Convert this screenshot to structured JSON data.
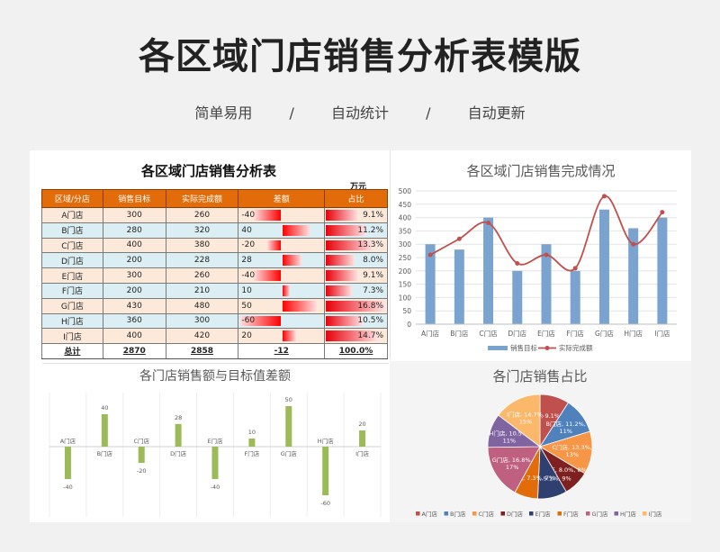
{
  "page": {
    "title": "各区域门店销售分析表模版",
    "tags": [
      "简单易用",
      "自动统计",
      "自动更新"
    ],
    "separator": "/"
  },
  "table": {
    "title": "各区域门店销售分析表",
    "unit": "万元",
    "headers": [
      "区域/分店",
      "销售目标",
      "实际完成额",
      "差额",
      "占比"
    ],
    "rows": [
      {
        "store": "A门店",
        "target": "300",
        "actual": "260",
        "diff": "-40",
        "pct": "9.1%"
      },
      {
        "store": "B门店",
        "target": "280",
        "actual": "320",
        "diff": "40",
        "pct": "11.2%"
      },
      {
        "store": "C门店",
        "target": "400",
        "actual": "380",
        "diff": "-20",
        "pct": "13.3%"
      },
      {
        "store": "D门店",
        "target": "200",
        "actual": "228",
        "diff": "28",
        "pct": "8.0%"
      },
      {
        "store": "E门店",
        "target": "300",
        "actual": "260",
        "diff": "-40",
        "pct": "9.1%"
      },
      {
        "store": "F门店",
        "target": "200",
        "actual": "210",
        "diff": "10",
        "pct": "7.3%"
      },
      {
        "store": "G门店",
        "target": "430",
        "actual": "480",
        "diff": "50",
        "pct": "16.8%"
      },
      {
        "store": "H门店",
        "target": "360",
        "actual": "300",
        "diff": "-60",
        "pct": "10.5%"
      },
      {
        "store": "I门店",
        "target": "400",
        "actual": "420",
        "diff": "20",
        "pct": "14.7%"
      }
    ],
    "total": {
      "label": "总计",
      "target": "2870",
      "actual": "2858",
      "diff": "-12",
      "pct": "100.0%"
    }
  },
  "colors": {
    "header": "#e36c0a",
    "bar_blue": "#7ba3cf",
    "line_red": "#c0504d",
    "bar_green": "#9bbb59",
    "databar_red": "#ff0000",
    "pie": [
      "#c0504d",
      "#4f81bd",
      "#f79646",
      "#7f2020",
      "#2f3f6f",
      "#e36c0a",
      "#c06080",
      "#8064a2",
      "#fbb86a"
    ]
  },
  "chart_data": [
    {
      "type": "bar+line",
      "title": "各区域门店销售完成情况",
      "categories": [
        "A门店",
        "B门店",
        "C门店",
        "D门店",
        "E门店",
        "F门店",
        "G门店",
        "H门店",
        "I门店"
      ],
      "series": [
        {
          "name": "销售目标",
          "kind": "bar",
          "values": [
            300,
            280,
            400,
            200,
            300,
            200,
            430,
            360,
            400
          ]
        },
        {
          "name": "实际完成额",
          "kind": "line",
          "values": [
            260,
            320,
            380,
            228,
            260,
            210,
            480,
            300,
            420
          ]
        }
      ],
      "yticks": [
        "0",
        "50",
        "100",
        "150",
        "200",
        "250",
        "300",
        "350",
        "400",
        "450",
        "500"
      ],
      "ylim": [
        0,
        500
      ],
      "grid": true,
      "legend": "bottom"
    },
    {
      "type": "bar",
      "title": "各门店销售额与目标值差额",
      "categories": [
        "A门店",
        "B门店",
        "C门店",
        "D门店",
        "E门店",
        "F门店",
        "G门店",
        "H门店",
        "I门店"
      ],
      "values": [
        -40,
        40,
        -20,
        28,
        -40,
        10,
        50,
        -60,
        20
      ],
      "value_labels": [
        "-40",
        "40",
        "-20",
        "28",
        "-40",
        "10",
        "50",
        "-60",
        "20"
      ],
      "ylim": [
        -60,
        50
      ]
    },
    {
      "type": "pie",
      "title": "各门店销售占比",
      "categories": [
        "A门店",
        "B门店",
        "C门店",
        "D门店",
        "E门店",
        "F门店",
        "G门店",
        "H门店",
        "I门店"
      ],
      "values": [
        9.1,
        11.2,
        13.3,
        8.0,
        9.1,
        7.3,
        16.8,
        10.5,
        14.7
      ],
      "slice_labels": [
        [
          "A门店, 9.1%, 9%"
        ],
        [
          "B门店, 11.2%,",
          "11%"
        ],
        [
          "C门店, 13.3%,",
          "13%"
        ],
        [
          "D门店, 8.0%, 8%"
        ],
        [
          "E门店, 9.1%, 9%"
        ],
        [
          "F门店, 7.3%, 7%"
        ],
        [
          "G门店, 16.8%,",
          "17%"
        ],
        [
          "H门店, 10.5%,",
          "11%"
        ],
        [
          "I门店, 14.7%,",
          "15%"
        ]
      ],
      "legend": "bottom"
    }
  ]
}
